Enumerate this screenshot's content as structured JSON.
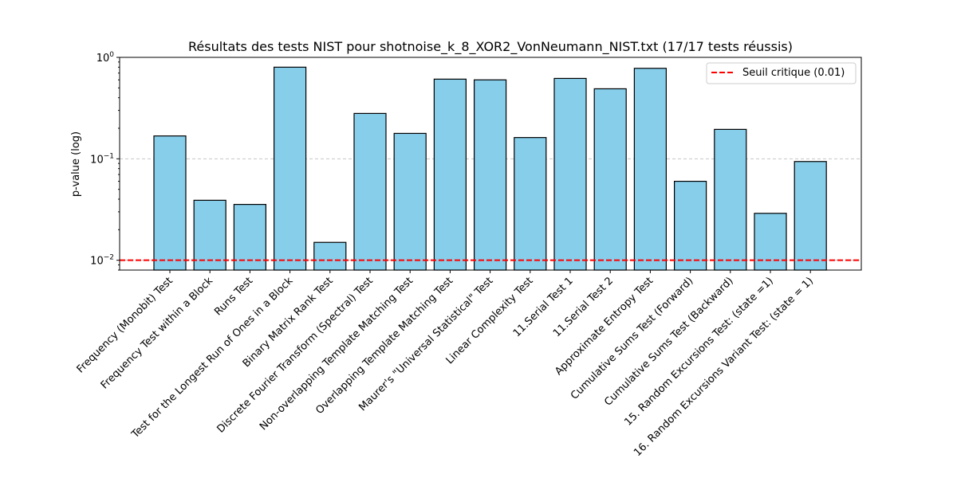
{
  "chart_data": {
    "type": "bar",
    "title": "Résultats des tests NIST pour shotnoise_k_8_XOR2_VonNeumann_NIST.txt (17/17 tests réussis)",
    "xlabel": "",
    "ylabel": "p-value (log)",
    "yscale": "log",
    "ylim": [
      0.008,
      1.0
    ],
    "yticks": [
      {
        "value": 0.01,
        "base": "10",
        "exp": "−2"
      },
      {
        "value": 0.1,
        "base": "10",
        "exp": "−1"
      },
      {
        "value": 1,
        "base": "10",
        "exp": "0"
      }
    ],
    "grid": "horizontal dashed at major ticks",
    "categories": [
      "Frequency (Monobit) Test",
      "Frequency Test within a Block",
      "Runs Test",
      "Test for the Longest Run of Ones in a Block",
      "Binary Matrix Rank Test",
      "Discrete Fourier Transform (Spectral) Test",
      "Non-overlapping Template Matching Test",
      "Overlapping Template Matching Test",
      "Maurer's \"Universal Statistical\" Test",
      "Linear Complexity Test",
      "11.Serial Test 1",
      "11.Serial Test 2",
      "Approximate Entropy Test",
      "Cumulative Sums Test (Forward)",
      "Cumulative Sums Test (Backward)",
      "15. Random Excursions Test: (state =1)",
      "16. Random Excursions Variant Test: (state = 1)"
    ],
    "values": [
      0.168,
      0.039,
      0.0355,
      0.8,
      0.015,
      0.28,
      0.178,
      0.61,
      0.6,
      0.162,
      0.62,
      0.49,
      0.78,
      0.06,
      0.195,
      0.029,
      0.094
    ],
    "threshold": {
      "value": 0.01,
      "label": "Seuil critique (0.01)",
      "color": "#ff0000",
      "style": "dashed"
    },
    "legend_position": "top-right",
    "bar_color": "#87ceeb",
    "bar_edge_color": "#000000"
  }
}
